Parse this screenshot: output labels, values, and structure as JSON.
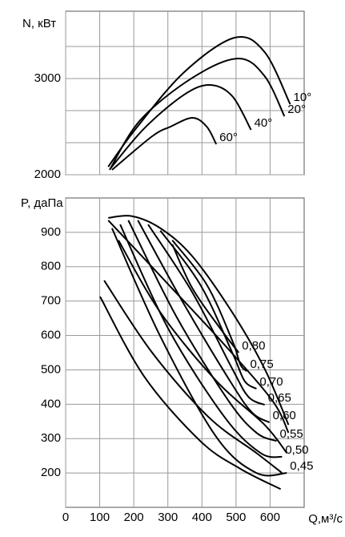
{
  "chart_data": [
    {
      "type": "line",
      "y_label": "N, кВт",
      "xlim": [
        0,
        700
      ],
      "xticks": [
        0,
        100,
        200,
        300,
        400,
        500,
        600
      ],
      "ylim": [
        2000,
        3700
      ],
      "yticks": [
        2000,
        3000
      ],
      "grid_y": [
        2333,
        2667,
        3333
      ],
      "color": "#000000",
      "grid": true,
      "series": [
        {
          "name": "10°",
          "x": [
            125,
            207,
            348,
            496,
            584,
            659
          ],
          "values": [
            2083,
            2483,
            3067,
            3425,
            3275,
            2733
          ]
        },
        {
          "name": "20°",
          "x": [
            129,
            219,
            372,
            506,
            584,
            642
          ],
          "values": [
            2050,
            2567,
            3008,
            3208,
            3025,
            2608
          ]
        },
        {
          "name": "40°",
          "x": [
            132,
            231,
            348,
            424,
            489,
            544
          ],
          "values": [
            2067,
            2483,
            2833,
            2933,
            2817,
            2467
          ]
        },
        {
          "name": "60°",
          "x": [
            136,
            254,
            308,
            372,
            414,
            442
          ],
          "values": [
            2050,
            2400,
            2500,
            2592,
            2500,
            2317
          ]
        }
      ]
    },
    {
      "type": "line",
      "y_label": "P, даПа",
      "x_label": "Q,м³/с",
      "xlim": [
        0,
        700
      ],
      "xticks": [
        0,
        100,
        200,
        300,
        400,
        500,
        600
      ],
      "ylim": [
        100,
        1000
      ],
      "yticks": [
        200,
        300,
        400,
        500,
        600,
        700,
        800,
        900
      ],
      "color": "#000000",
      "grid": true,
      "series": [
        {
          "x": [
            101,
            231,
            395,
            513,
            631
          ],
          "values": [
            713,
            480,
            293,
            212,
            153
          ]
        },
        {
          "x": [
            113,
            254,
            419,
            560,
            635
          ],
          "values": [
            760,
            550,
            363,
            258,
            200
          ]
        },
        {
          "x": [
            155,
            278,
            442,
            584,
            649
          ],
          "values": [
            877,
            667,
            468,
            340,
            258
          ]
        },
        {
          "x": [
            125,
            301,
            466,
            607,
            654
          ],
          "values": [
            935,
            749,
            573,
            410,
            317
          ]
        },
        {
          "x": [
            125,
            195,
            278,
            372,
            489,
            584,
            654
          ],
          "values": [
            942,
            947,
            912,
            830,
            667,
            503,
            340
          ]
        },
        {
          "name": "0,80",
          "x": [
            313,
            372,
            454,
            508
          ],
          "values": [
            865,
            737,
            620,
            550
          ]
        },
        {
          "name": "0,75",
          "x": [
            313,
            414,
            489,
            513,
            532
          ],
          "values": [
            877,
            748,
            585,
            515,
            496
          ]
        },
        {
          "name": "0,70",
          "x": [
            278,
            395,
            489,
            525,
            560
          ],
          "values": [
            905,
            748,
            550,
            468,
            445
          ]
        },
        {
          "name": "0,65",
          "x": [
            242,
            372,
            489,
            536,
            584
          ],
          "values": [
            923,
            725,
            503,
            422,
            398
          ]
        },
        {
          "name": "0,60",
          "x": [
            212,
            348,
            489,
            548,
            598
          ],
          "values": [
            935,
            690,
            457,
            375,
            347
          ]
        },
        {
          "name": "0,55",
          "x": [
            184,
            325,
            478,
            560,
            619
          ],
          "values": [
            935,
            655,
            410,
            317,
            293
          ]
        },
        {
          "name": "0,50",
          "x": [
            160,
            301,
            466,
            572,
            635
          ],
          "values": [
            923,
            620,
            363,
            258,
            247
          ]
        },
        {
          "name": "0,45",
          "x": [
            136,
            278,
            442,
            560,
            649
          ],
          "values": [
            912,
            597,
            305,
            200,
            200
          ]
        }
      ]
    }
  ]
}
